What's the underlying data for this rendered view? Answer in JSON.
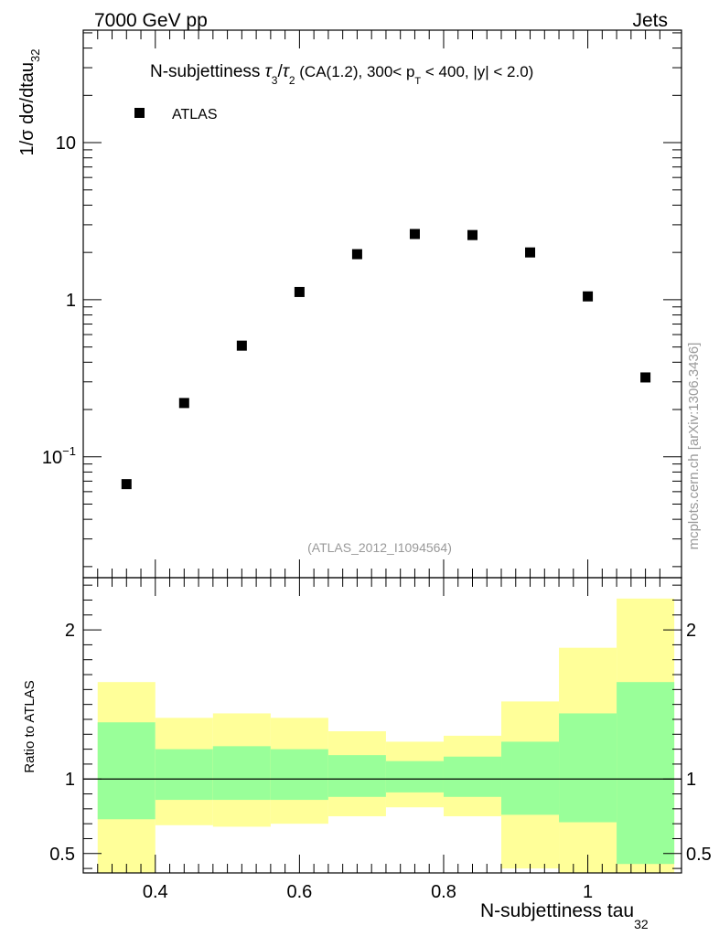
{
  "header": {
    "left": "7000 GeV pp",
    "right": "Jets"
  },
  "side_label": "mcplots.cern.ch [arXiv:1306.3436]",
  "analysis_label": "(ATLAS_2012_I1094564)",
  "title": {
    "main": "N-subjettiness ",
    "t3": "τ",
    "t3_sub": "3",
    "slash": "/",
    "t2": "τ",
    "t2_sub": "2",
    "cuts_a": " (CA(1.2), 300< p",
    "cuts_sub": "T",
    "cuts_b": " < 400, |y| < 2.0)"
  },
  "legend": {
    "label": "ATLAS"
  },
  "axes": {
    "ylabel_main": "1/σ dσ/dtau",
    "ylabel_sub": "32",
    "ylabel_ratio": "Ratio to ATLAS",
    "xlabel_main": "N-subjettiness tau",
    "xlabel_sub": "32",
    "main_ticks": [
      {
        "value": 10,
        "label": "10",
        "exp": ""
      },
      {
        "value": 1,
        "label": "1",
        "exp": ""
      },
      {
        "value": 0.1,
        "label": "10",
        "exp": "−1"
      }
    ],
    "ratio_ticks": [
      "0.5",
      "1",
      "2"
    ],
    "x_ticks": [
      "0.4",
      "0.6",
      "0.8",
      "1"
    ]
  },
  "chart_data": [
    {
      "type": "scatter",
      "title": "N-subjettiness τ3/τ2 (CA(1.2), 300< pT < 400, |y| < 2.0)",
      "xlabel": "N-subjettiness tau32",
      "ylabel": "1/σ dσ/dtau32",
      "xlim": [
        0.3,
        1.13
      ],
      "ylim": [
        0.017,
        52
      ],
      "yscale": "log",
      "series": [
        {
          "name": "ATLAS",
          "x": [
            0.36,
            0.44,
            0.52,
            0.6,
            0.68,
            0.76,
            0.84,
            0.92,
            1.0,
            1.08
          ],
          "y": [
            0.067,
            0.22,
            0.51,
            1.12,
            1.95,
            2.62,
            2.58,
            2.0,
            1.05,
            0.32
          ]
        }
      ]
    },
    {
      "type": "area",
      "ylabel": "Ratio to ATLAS",
      "xlim": [
        0.3,
        1.13
      ],
      "ylim": [
        0.37,
        2.35
      ],
      "reference_line": 1,
      "bins": [
        {
          "lo": 0.32,
          "hi": 0.4,
          "green": [
            0.73,
            1.38
          ],
          "yellow": [
            0.36,
            1.65
          ]
        },
        {
          "lo": 0.4,
          "hi": 0.48,
          "green": [
            0.86,
            1.2
          ],
          "yellow": [
            0.69,
            1.41
          ]
        },
        {
          "lo": 0.48,
          "hi": 0.56,
          "green": [
            0.86,
            1.22
          ],
          "yellow": [
            0.68,
            1.44
          ]
        },
        {
          "lo": 0.56,
          "hi": 0.64,
          "green": [
            0.86,
            1.2
          ],
          "yellow": [
            0.7,
            1.41
          ]
        },
        {
          "lo": 0.64,
          "hi": 0.72,
          "green": [
            0.88,
            1.16
          ],
          "yellow": [
            0.75,
            1.32
          ]
        },
        {
          "lo": 0.72,
          "hi": 0.8,
          "green": [
            0.91,
            1.12
          ],
          "yellow": [
            0.81,
            1.25
          ]
        },
        {
          "lo": 0.8,
          "hi": 0.88,
          "green": [
            0.88,
            1.15
          ],
          "yellow": [
            0.75,
            1.29
          ]
        },
        {
          "lo": 0.88,
          "hi": 0.96,
          "green": [
            0.76,
            1.25
          ],
          "yellow": [
            0.4,
            1.52
          ]
        },
        {
          "lo": 0.96,
          "hi": 1.04,
          "green": [
            0.71,
            1.44
          ],
          "yellow": [
            0.36,
            1.88
          ]
        },
        {
          "lo": 1.04,
          "hi": 1.12,
          "green": [
            0.43,
            1.65
          ],
          "yellow": [
            0.36,
            2.21
          ]
        }
      ]
    }
  ],
  "colors": {
    "green": "#99ff99",
    "yellow": "#ffff99",
    "marker": "#000000",
    "frame": "#000000"
  }
}
